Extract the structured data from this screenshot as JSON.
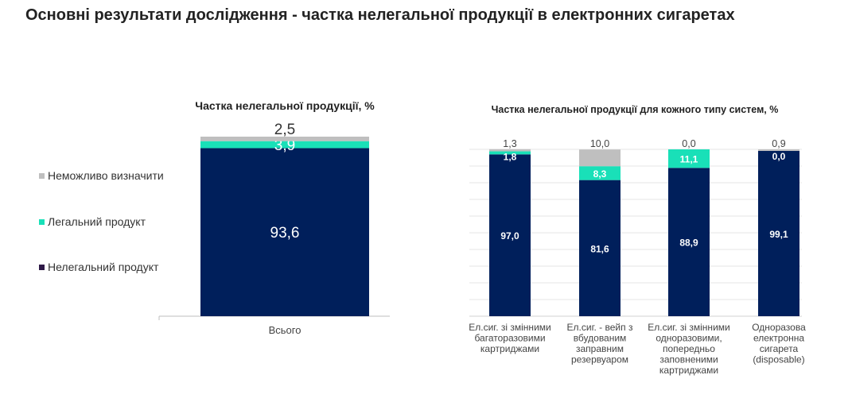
{
  "page_title": "Основні результати дослідження - частка нелегальної продукції в електронних сигаретах",
  "colors": {
    "illegal": "#001F5B",
    "legal": "#19E0B8",
    "unknown": "#BFBFBF",
    "legend_illegal": "#2E1A47"
  },
  "chart_data": [
    {
      "type": "bar",
      "stacked": true,
      "title": "Частка нелегальної продукції, %",
      "categories": [
        [
          "Всього"
        ]
      ],
      "series": [
        {
          "name": "Нелегальний продукт",
          "values": [
            93.6
          ],
          "labels": [
            "93,6"
          ]
        },
        {
          "name": "Легальний продукт",
          "values": [
            3.9
          ],
          "labels": [
            "3,9"
          ]
        },
        {
          "name": "Неможливо визначити",
          "values": [
            2.5
          ],
          "labels": [
            "2,5"
          ]
        }
      ],
      "legend": [
        "Неможливо визначити",
        "Легальний продукт",
        "Нелегальний продукт"
      ],
      "legend_position": "left",
      "ylim": [
        0,
        100
      ],
      "grid": false
    },
    {
      "type": "bar",
      "stacked": true,
      "title": "Частка нелегальної продукції для кожного типу систем, %",
      "categories": [
        [
          "Ел.сиг. зі змінними",
          "багаторазовими",
          "картриджами"
        ],
        [
          "Ел.сиг. - вейп з",
          "вбудованим",
          "заправним",
          "резервуаром"
        ],
        [
          "Ел.сиг. зі змінними",
          "одноразовими,",
          "попередньо",
          "заповненими",
          "картриджами"
        ],
        [
          "Одноразова",
          "електронна",
          "сигарета",
          "(disposable)"
        ]
      ],
      "series": [
        {
          "name": "Нелегальний продукт",
          "values": [
            97.0,
            81.6,
            88.9,
            99.1
          ],
          "labels": [
            "97,0",
            "81,6",
            "88,9",
            "99,1"
          ]
        },
        {
          "name": "Легальний продукт",
          "values": [
            1.8,
            8.3,
            11.1,
            0.0
          ],
          "labels": [
            "1,8",
            "8,3",
            "11,1",
            "0,0"
          ]
        },
        {
          "name": "Неможливо визначити",
          "values": [
            1.3,
            10.0,
            0.0,
            0.9
          ],
          "labels": [
            "1,3",
            "10,0",
            "0,0",
            "0,9"
          ]
        }
      ],
      "ylim": [
        0,
        100
      ],
      "grid": true
    }
  ]
}
